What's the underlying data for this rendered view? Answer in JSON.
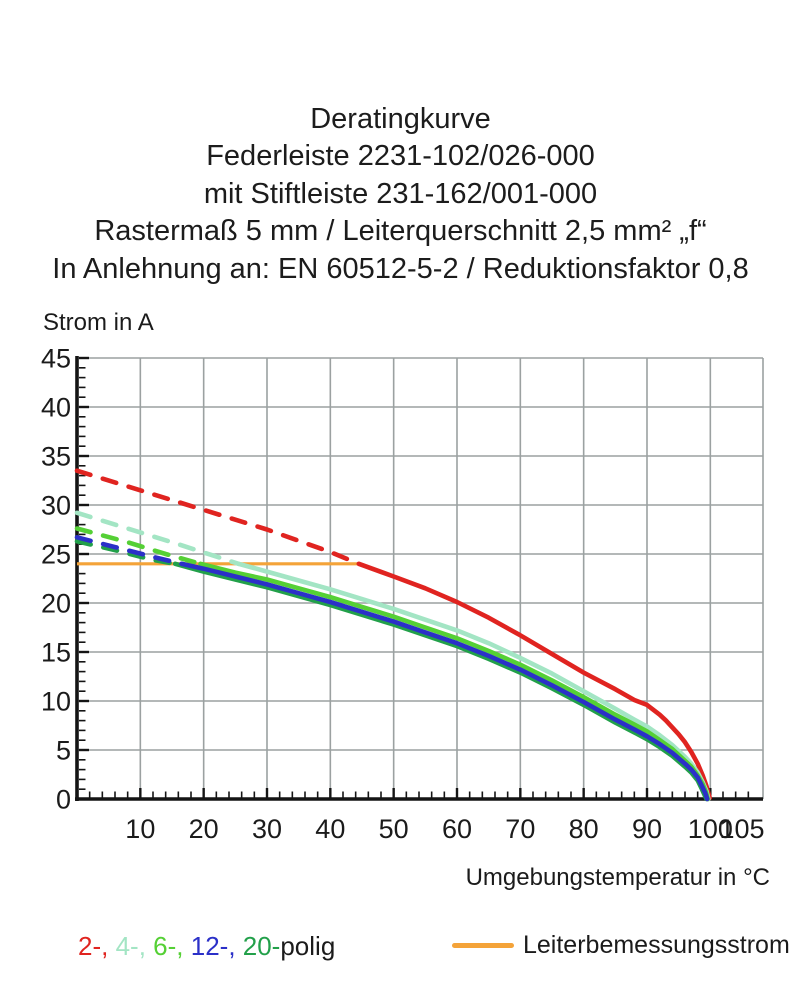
{
  "title": {
    "line1": "Deratingkurve",
    "line2": "Federleiste 2231-102/026-000",
    "line3": "mit Stiftleiste 231-162/001-000",
    "line4": "Rastermaß 5 mm / Leiterquerschnitt 2,5 mm² „f“",
    "line5": "In Anlehnung an: EN 60512-5-2 / Reduktionsfaktor 0,8"
  },
  "chart_data": {
    "type": "line",
    "title": "Deratingkurve",
    "ylabel": "Strom in A",
    "xlabel": "Umgebungstemperatur in °C",
    "xlim": [
      0,
      108
    ],
    "ylim": [
      0,
      45
    ],
    "x_tick_labels": [
      10,
      20,
      30,
      40,
      50,
      60,
      70,
      80,
      90,
      100,
      105
    ],
    "y_tick_labels": [
      0,
      5,
      10,
      15,
      20,
      25,
      30,
      35,
      40,
      45
    ],
    "x_minor_step": 2,
    "y_minor_step": 1,
    "grid": true,
    "grid_color": "#9ba1a1",
    "rated_current_A": 24,
    "rated_current_line": {
      "name": "Leiterbemessungsstrom",
      "color": "#f4a339",
      "y": 24,
      "x_start": 0,
      "x_end": 44.5
    },
    "dash_note": "curves are dashed above the rated conductor current (24 A) and solid below it; all fall to 0 A at ~100 °C",
    "series": [
      {
        "name": "2-polig",
        "color": "#e02420",
        "dashed": [
          [
            0,
            33.5
          ],
          [
            10,
            31.5
          ],
          [
            20,
            29.5
          ],
          [
            30,
            27.5
          ],
          [
            40,
            25.2
          ],
          [
            44.5,
            24.0
          ]
        ],
        "solid": [
          [
            44.5,
            24.0
          ],
          [
            50,
            22.7
          ],
          [
            55,
            21.5
          ],
          [
            60,
            20.1
          ],
          [
            65,
            18.5
          ],
          [
            70,
            16.7
          ],
          [
            75,
            14.8
          ],
          [
            80,
            12.9
          ],
          [
            85,
            11.2
          ],
          [
            88,
            10.1
          ],
          [
            90,
            9.6
          ],
          [
            92,
            8.6
          ],
          [
            93,
            8.0
          ],
          [
            95,
            6.6
          ],
          [
            96,
            5.8
          ],
          [
            97,
            4.8
          ],
          [
            98,
            3.6
          ],
          [
            98.8,
            2.4
          ],
          [
            99.4,
            1.3
          ],
          [
            99.9,
            0.1
          ]
        ]
      },
      {
        "name": "4-polig",
        "color": "#a3e5c4",
        "dashed": [
          [
            0,
            29.2
          ],
          [
            8,
            27.6
          ],
          [
            16,
            26.0
          ],
          [
            25.5,
            24.0
          ]
        ],
        "solid": [
          [
            25.5,
            24.0
          ],
          [
            30,
            23.2
          ],
          [
            35,
            22.3
          ],
          [
            40,
            21.4
          ],
          [
            45,
            20.4
          ],
          [
            50,
            19.4
          ],
          [
            55,
            18.3
          ],
          [
            60,
            17.2
          ],
          [
            65,
            15.9
          ],
          [
            70,
            14.4
          ],
          [
            75,
            12.8
          ],
          [
            80,
            11.0
          ],
          [
            85,
            9.2
          ],
          [
            88,
            8.1
          ],
          [
            90,
            7.4
          ],
          [
            92,
            6.5
          ],
          [
            94,
            5.5
          ],
          [
            96,
            4.3
          ],
          [
            97,
            3.6
          ],
          [
            98,
            2.7
          ],
          [
            98.8,
            1.7
          ],
          [
            99.4,
            0.8
          ],
          [
            99.7,
            0
          ]
        ]
      },
      {
        "name": "6-polig",
        "color": "#55d035",
        "dashed": [
          [
            0,
            27.6
          ],
          [
            8,
            26.2
          ],
          [
            14,
            25.0
          ],
          [
            19.5,
            24.0
          ]
        ],
        "solid": [
          [
            19.5,
            24.0
          ],
          [
            25,
            23.1
          ],
          [
            30,
            22.4
          ],
          [
            35,
            21.5
          ],
          [
            40,
            20.6
          ],
          [
            45,
            19.6
          ],
          [
            50,
            18.6
          ],
          [
            55,
            17.5
          ],
          [
            60,
            16.4
          ],
          [
            65,
            15.1
          ],
          [
            70,
            13.7
          ],
          [
            75,
            12.1
          ],
          [
            80,
            10.4
          ],
          [
            85,
            8.6
          ],
          [
            88,
            7.6
          ],
          [
            90,
            6.9
          ],
          [
            92,
            6.0
          ],
          [
            94,
            5.1
          ],
          [
            96,
            3.9
          ],
          [
            97,
            3.3
          ],
          [
            98,
            2.4
          ],
          [
            98.8,
            1.5
          ],
          [
            99.3,
            0.7
          ],
          [
            99.6,
            0
          ]
        ]
      },
      {
        "name": "12-polig",
        "color": "#2b30c8",
        "dashed": [
          [
            0,
            26.7
          ],
          [
            6,
            25.7
          ],
          [
            12,
            24.7
          ],
          [
            16.5,
            24.0
          ]
        ],
        "solid": [
          [
            16.5,
            24.0
          ],
          [
            20,
            23.5
          ],
          [
            25,
            22.7
          ],
          [
            30,
            21.9
          ],
          [
            35,
            21.0
          ],
          [
            40,
            20.1
          ],
          [
            45,
            19.1
          ],
          [
            50,
            18.1
          ],
          [
            55,
            17.0
          ],
          [
            60,
            15.9
          ],
          [
            65,
            14.6
          ],
          [
            70,
            13.2
          ],
          [
            75,
            11.6
          ],
          [
            80,
            9.9
          ],
          [
            85,
            8.1
          ],
          [
            88,
            7.1
          ],
          [
            90,
            6.4
          ],
          [
            92,
            5.6
          ],
          [
            94,
            4.7
          ],
          [
            96,
            3.6
          ],
          [
            97,
            3.0
          ],
          [
            98,
            2.2
          ],
          [
            98.7,
            1.3
          ],
          [
            99.2,
            0.6
          ],
          [
            99.5,
            0
          ]
        ]
      },
      {
        "name": "20-polig",
        "color": "#22a04a",
        "dashed": [
          [
            0,
            26.3
          ],
          [
            6,
            25.4
          ],
          [
            12,
            24.4
          ],
          [
            15.5,
            24.0
          ]
        ],
        "solid": [
          [
            15.5,
            24.0
          ],
          [
            20,
            23.2
          ],
          [
            25,
            22.4
          ],
          [
            30,
            21.6
          ],
          [
            35,
            20.7
          ],
          [
            40,
            19.8
          ],
          [
            45,
            18.8
          ],
          [
            50,
            17.8
          ],
          [
            55,
            16.7
          ],
          [
            60,
            15.6
          ],
          [
            65,
            14.3
          ],
          [
            70,
            12.9
          ],
          [
            75,
            11.3
          ],
          [
            80,
            9.6
          ],
          [
            85,
            7.8
          ],
          [
            88,
            6.8
          ],
          [
            90,
            6.1
          ],
          [
            92,
            5.3
          ],
          [
            94,
            4.4
          ],
          [
            96,
            3.3
          ],
          [
            97,
            2.7
          ],
          [
            98,
            1.9
          ],
          [
            98.6,
            1.1
          ],
          [
            99.1,
            0.4
          ],
          [
            99.4,
            0
          ]
        ]
      }
    ]
  },
  "legend": {
    "poles": [
      {
        "label": "2-",
        "color": "#e02420"
      },
      {
        "label": "4-",
        "color": "#a3e5c4"
      },
      {
        "label": "6-",
        "color": "#55d035"
      },
      {
        "label": "12-",
        "color": "#2b30c8"
      },
      {
        "label": "20-",
        "color": "#22a04a"
      }
    ],
    "poles_suffix": "polig",
    "separator": ", ",
    "rated_current_label": "Leiterbemessungsstrom",
    "rated_current_color": "#f4a339"
  }
}
